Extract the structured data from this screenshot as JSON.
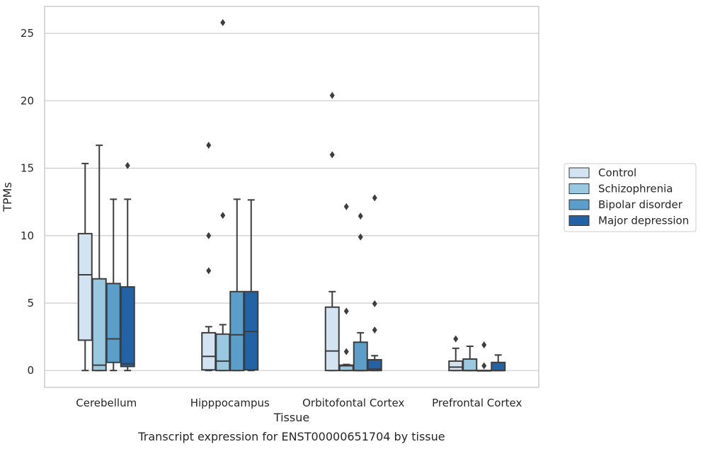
{
  "chart_data": {
    "type": "box",
    "caption": "Transcript expression for ENST00000651704 by tissue",
    "xlabel": "Tissue",
    "ylabel": "TPMs",
    "ylim": [
      -1.25,
      27
    ],
    "yticks": [
      0,
      5,
      10,
      15,
      20,
      25
    ],
    "grid": "horizontal",
    "legend_position": "right",
    "categories": [
      "Cerebellum",
      "Hipppocampus",
      "Orbitofontal Cortex",
      "Prefrontal Cortex"
    ],
    "series": [
      {
        "name": "Control",
        "color": "#d3e3f2",
        "boxes": [
          {
            "whislo": 0,
            "q1": 2.25,
            "med": 7.1,
            "q3": 10.15,
            "whishi": 15.35,
            "fliers": []
          },
          {
            "whislo": 0,
            "q1": 0.05,
            "med": 1.05,
            "q3": 2.8,
            "whishi": 3.25,
            "fliers": [
              7.4,
              10.0,
              16.7
            ]
          },
          {
            "whislo": 0,
            "q1": 0,
            "med": 1.45,
            "q3": 4.7,
            "whishi": 5.85,
            "fliers": [
              16.0,
              20.4
            ]
          },
          {
            "whislo": 0,
            "q1": 0,
            "med": 0.25,
            "q3": 0.7,
            "whishi": 1.65,
            "fliers": [
              2.35
            ]
          }
        ]
      },
      {
        "name": "Schizophrenia",
        "color": "#9ac8e0",
        "boxes": [
          {
            "whislo": 0,
            "q1": 0,
            "med": 0.4,
            "q3": 6.8,
            "whishi": 16.7,
            "fliers": []
          },
          {
            "whislo": 0,
            "q1": 0,
            "med": 0.7,
            "q3": 2.7,
            "whishi": 3.4,
            "fliers": [
              11.5,
              25.8
            ]
          },
          {
            "whislo": 0,
            "q1": 0,
            "med": 0.35,
            "q3": 0.4,
            "whishi": 0.45,
            "fliers": [
              1.4,
              4.4,
              12.15
            ]
          },
          {
            "whislo": 0,
            "q1": 0,
            "med": 0,
            "q3": 0.85,
            "whishi": 1.8,
            "fliers": []
          }
        ]
      },
      {
        "name": "Bipolar disorder",
        "color": "#5a9ec9",
        "boxes": [
          {
            "whislo": 0,
            "q1": 0.6,
            "med": 2.35,
            "q3": 6.45,
            "whishi": 12.7,
            "fliers": []
          },
          {
            "whislo": 0,
            "q1": 0,
            "med": 2.65,
            "q3": 5.85,
            "whishi": 12.7,
            "fliers": []
          },
          {
            "whislo": 0,
            "q1": 0,
            "med": 0,
            "q3": 2.1,
            "whishi": 2.8,
            "fliers": [
              9.9,
              11.45
            ]
          },
          {
            "whislo": 0,
            "q1": 0,
            "med": 0,
            "q3": 0,
            "whishi": 0,
            "fliers": [
              0.35,
              1.9
            ]
          }
        ]
      },
      {
        "name": "Major depression",
        "color": "#2363a5",
        "boxes": [
          {
            "whislo": 0,
            "q1": 0.3,
            "med": 0.5,
            "q3": 6.2,
            "whishi": 12.7,
            "fliers": [
              15.2
            ]
          },
          {
            "whislo": 0,
            "q1": 0.05,
            "med": 2.9,
            "q3": 5.85,
            "whishi": 12.65,
            "fliers": []
          },
          {
            "whislo": 0,
            "q1": 0,
            "med": 0.1,
            "q3": 0.8,
            "whishi": 1.1,
            "fliers": [
              3.0,
              4.95,
              12.8
            ]
          },
          {
            "whislo": 0,
            "q1": 0,
            "med": 0,
            "q3": 0.6,
            "whishi": 1.15,
            "fliers": []
          }
        ]
      }
    ]
  }
}
